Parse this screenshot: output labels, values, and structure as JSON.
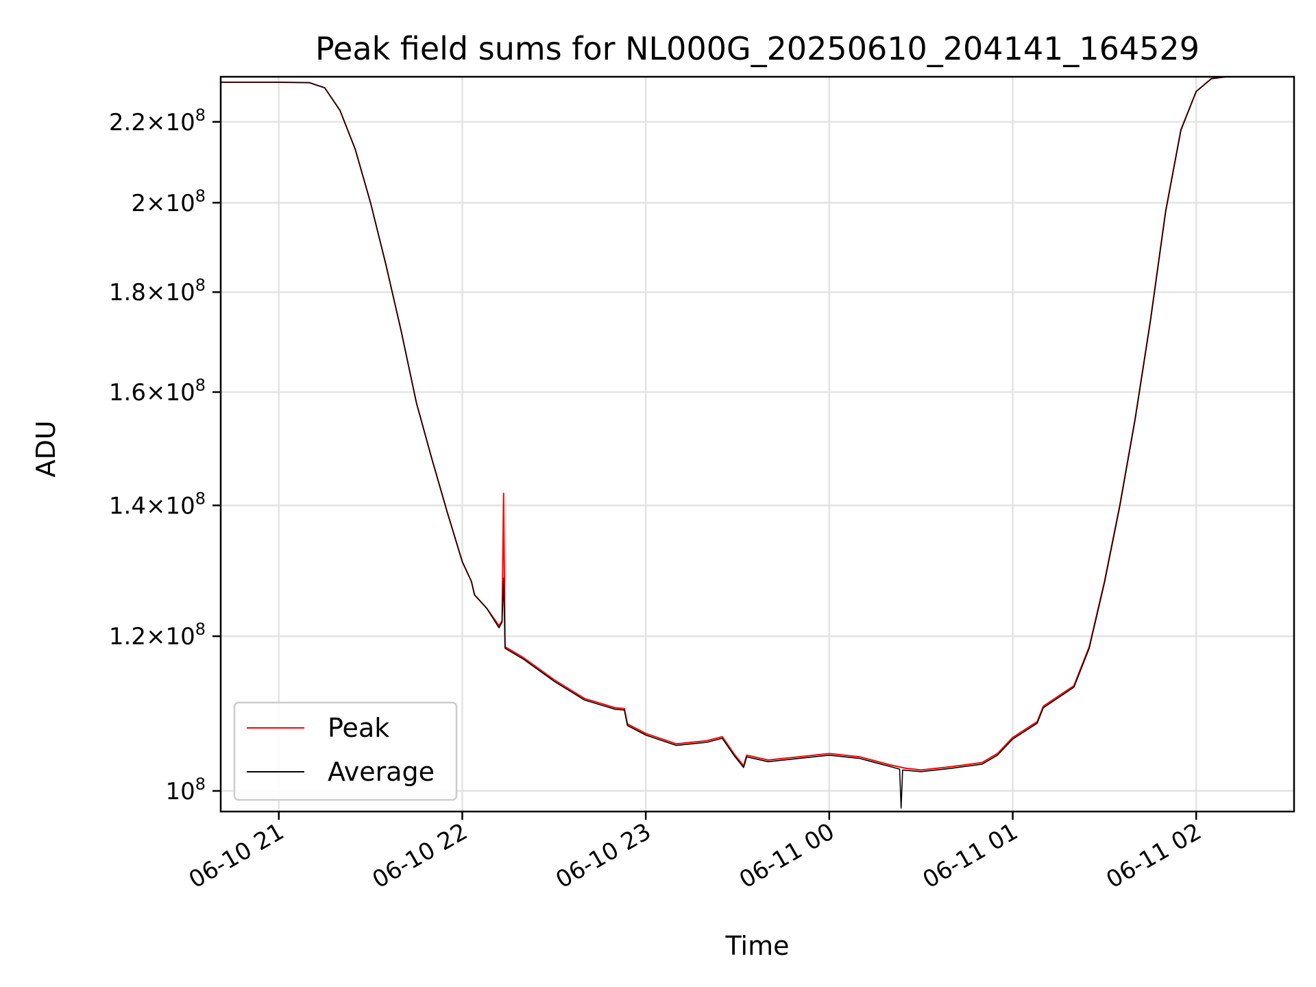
{
  "chart_data": {
    "type": "line",
    "title": "Peak field sums for NL000G_20250610_204141_164529",
    "xlabel": "Time",
    "ylabel": "ADU",
    "yscale": "log",
    "grid": true,
    "legend_position": "lower-left",
    "xlim": [
      "2025-06-10 20:41",
      "2025-06-11 02:32"
    ],
    "ylim": [
      97600000,
      232000000
    ],
    "x_ticks": [
      {
        "value": "2025-06-10 21:00",
        "label": "06-10 21"
      },
      {
        "value": "2025-06-10 22:00",
        "label": "06-10 22"
      },
      {
        "value": "2025-06-10 23:00",
        "label": "06-10 23"
      },
      {
        "value": "2025-06-11 00:00",
        "label": "06-11 00"
      },
      {
        "value": "2025-06-11 01:00",
        "label": "06-11 01"
      },
      {
        "value": "2025-06-11 02:00",
        "label": "06-11 02"
      }
    ],
    "y_ticks": [
      {
        "value": 100000000,
        "mantissa": "",
        "exponent": "8"
      },
      {
        "value": 120000000,
        "mantissa": "1.2",
        "exponent": "8"
      },
      {
        "value": 140000000,
        "mantissa": "1.4",
        "exponent": "8"
      },
      {
        "value": 160000000,
        "mantissa": "1.6",
        "exponent": "8"
      },
      {
        "value": 180000000,
        "mantissa": "1.8",
        "exponent": "8"
      },
      {
        "value": 200000000,
        "mantissa": "2",
        "exponent": "8"
      },
      {
        "value": 220000000,
        "mantissa": "2.2",
        "exponent": "8"
      }
    ],
    "series": [
      {
        "name": "Peak",
        "color": "#ff0000",
        "points": [
          [
            "2025-06-10 20:41",
            230500000
          ],
          [
            "2025-06-10 21:00",
            230500000
          ],
          [
            "2025-06-10 21:10",
            230400000
          ],
          [
            "2025-06-10 21:15",
            229000000
          ],
          [
            "2025-06-10 21:20",
            223000000
          ],
          [
            "2025-06-10 21:25",
            213000000
          ],
          [
            "2025-06-10 21:30",
            200000000
          ],
          [
            "2025-06-10 21:35",
            186000000
          ],
          [
            "2025-06-10 21:40",
            172000000
          ],
          [
            "2025-06-10 21:45",
            158000000
          ],
          [
            "2025-06-10 21:50",
            148000000
          ],
          [
            "2025-06-10 21:55",
            139000000
          ],
          [
            "2025-06-10 22:00",
            131000000
          ],
          [
            "2025-06-10 22:03",
            128000000
          ],
          [
            "2025-06-10 22:04",
            126000000
          ],
          [
            "2025-06-10 22:08",
            124000000
          ],
          [
            "2025-06-10 22:12",
            121500000
          ],
          [
            "2025-06-10 22:13",
            122200000
          ],
          [
            "2025-06-10 22:13.5",
            142000000
          ],
          [
            "2025-06-10 22:14",
            118500000
          ],
          [
            "2025-06-10 22:20",
            117000000
          ],
          [
            "2025-06-10 22:30",
            114000000
          ],
          [
            "2025-06-10 22:40",
            111500000
          ],
          [
            "2025-06-10 22:50",
            110300000
          ],
          [
            "2025-06-10 22:53",
            110200000
          ],
          [
            "2025-06-10 22:54",
            108200000
          ],
          [
            "2025-06-10 23:00",
            107000000
          ],
          [
            "2025-06-10 23:10",
            105700000
          ],
          [
            "2025-06-10 23:20",
            106100000
          ],
          [
            "2025-06-10 23:25",
            106600000
          ],
          [
            "2025-06-10 23:29",
            104400000
          ],
          [
            "2025-06-10 23:32",
            103000000
          ],
          [
            "2025-06-10 23:33",
            104300000
          ],
          [
            "2025-06-10 23:40",
            103700000
          ],
          [
            "2025-06-10 23:50",
            104100000
          ],
          [
            "2025-06-11 00:00",
            104500000
          ],
          [
            "2025-06-11 00:10",
            104100000
          ],
          [
            "2025-06-11 00:20",
            103100000
          ],
          [
            "2025-06-11 00:25",
            102700000
          ],
          [
            "2025-06-11 00:30",
            102500000
          ],
          [
            "2025-06-11 00:40",
            102900000
          ],
          [
            "2025-06-11 00:50",
            103400000
          ],
          [
            "2025-06-11 00:55",
            104500000
          ],
          [
            "2025-06-11 01:00",
            106500000
          ],
          [
            "2025-06-11 01:08",
            108500000
          ],
          [
            "2025-06-11 01:10",
            110500000
          ],
          [
            "2025-06-11 01:20",
            113200000
          ],
          [
            "2025-06-11 01:25",
            118500000
          ],
          [
            "2025-06-11 01:30",
            128000000
          ],
          [
            "2025-06-11 01:35",
            140000000
          ],
          [
            "2025-06-11 01:40",
            155000000
          ],
          [
            "2025-06-11 01:45",
            174000000
          ],
          [
            "2025-06-11 01:50",
            198000000
          ],
          [
            "2025-06-11 01:55",
            218000000
          ],
          [
            "2025-06-11 02:00",
            228000000
          ],
          [
            "2025-06-11 02:05",
            231500000
          ],
          [
            "2025-06-11 02:10",
            232000000
          ],
          [
            "2025-06-11 02:32",
            232000000
          ]
        ]
      },
      {
        "name": "Average",
        "color": "#000000",
        "points": [
          [
            "2025-06-10 20:41",
            230500000
          ],
          [
            "2025-06-10 21:00",
            230500000
          ],
          [
            "2025-06-10 21:10",
            230400000
          ],
          [
            "2025-06-10 21:15",
            229000000
          ],
          [
            "2025-06-10 21:20",
            223000000
          ],
          [
            "2025-06-10 21:25",
            213000000
          ],
          [
            "2025-06-10 21:30",
            200000000
          ],
          [
            "2025-06-10 21:35",
            186000000
          ],
          [
            "2025-06-10 21:40",
            172000000
          ],
          [
            "2025-06-10 21:45",
            158000000
          ],
          [
            "2025-06-10 21:50",
            148000000
          ],
          [
            "2025-06-10 21:55",
            139000000
          ],
          [
            "2025-06-10 22:00",
            131000000
          ],
          [
            "2025-06-10 22:03",
            128000000
          ],
          [
            "2025-06-10 22:04",
            126000000
          ],
          [
            "2025-06-10 22:08",
            124000000
          ],
          [
            "2025-06-10 22:12",
            121200000
          ],
          [
            "2025-06-10 22:13",
            122000000
          ],
          [
            "2025-06-10 22:13.5",
            128500000
          ],
          [
            "2025-06-10 22:14",
            118300000
          ],
          [
            "2025-06-10 22:20",
            116800000
          ],
          [
            "2025-06-10 22:30",
            113800000
          ],
          [
            "2025-06-10 22:40",
            111300000
          ],
          [
            "2025-06-10 22:50",
            110100000
          ],
          [
            "2025-06-10 22:53",
            110000000
          ],
          [
            "2025-06-10 22:54",
            108000000
          ],
          [
            "2025-06-10 23:00",
            106800000
          ],
          [
            "2025-06-10 23:10",
            105500000
          ],
          [
            "2025-06-10 23:20",
            105900000
          ],
          [
            "2025-06-10 23:25",
            106400000
          ],
          [
            "2025-06-10 23:29",
            104200000
          ],
          [
            "2025-06-10 23:32",
            102800000
          ],
          [
            "2025-06-10 23:33",
            104100000
          ],
          [
            "2025-06-10 23:40",
            103500000
          ],
          [
            "2025-06-10 23:50",
            103900000
          ],
          [
            "2025-06-11 00:00",
            104300000
          ],
          [
            "2025-06-11 00:10",
            103900000
          ],
          [
            "2025-06-11 00:20",
            102900000
          ],
          [
            "2025-06-11 00:23",
            102600000
          ],
          [
            "2025-06-11 00:23.5",
            98000000
          ],
          [
            "2025-06-11 00:24",
            102500000
          ],
          [
            "2025-06-11 00:30",
            102300000
          ],
          [
            "2025-06-11 00:40",
            102700000
          ],
          [
            "2025-06-11 00:50",
            103200000
          ],
          [
            "2025-06-11 00:55",
            104300000
          ],
          [
            "2025-06-11 01:00",
            106300000
          ],
          [
            "2025-06-11 01:08",
            108300000
          ],
          [
            "2025-06-11 01:10",
            110300000
          ],
          [
            "2025-06-11 01:20",
            113000000
          ],
          [
            "2025-06-11 01:25",
            118300000
          ],
          [
            "2025-06-11 01:30",
            127800000
          ],
          [
            "2025-06-11 01:35",
            139800000
          ],
          [
            "2025-06-11 01:40",
            154800000
          ],
          [
            "2025-06-11 01:45",
            173800000
          ],
          [
            "2025-06-11 01:50",
            197800000
          ],
          [
            "2025-06-11 01:55",
            217800000
          ],
          [
            "2025-06-11 02:00",
            228000000
          ],
          [
            "2025-06-11 02:05",
            231500000
          ],
          [
            "2025-06-11 02:10",
            232000000
          ],
          [
            "2025-06-11 02:32",
            232000000
          ]
        ]
      }
    ]
  }
}
